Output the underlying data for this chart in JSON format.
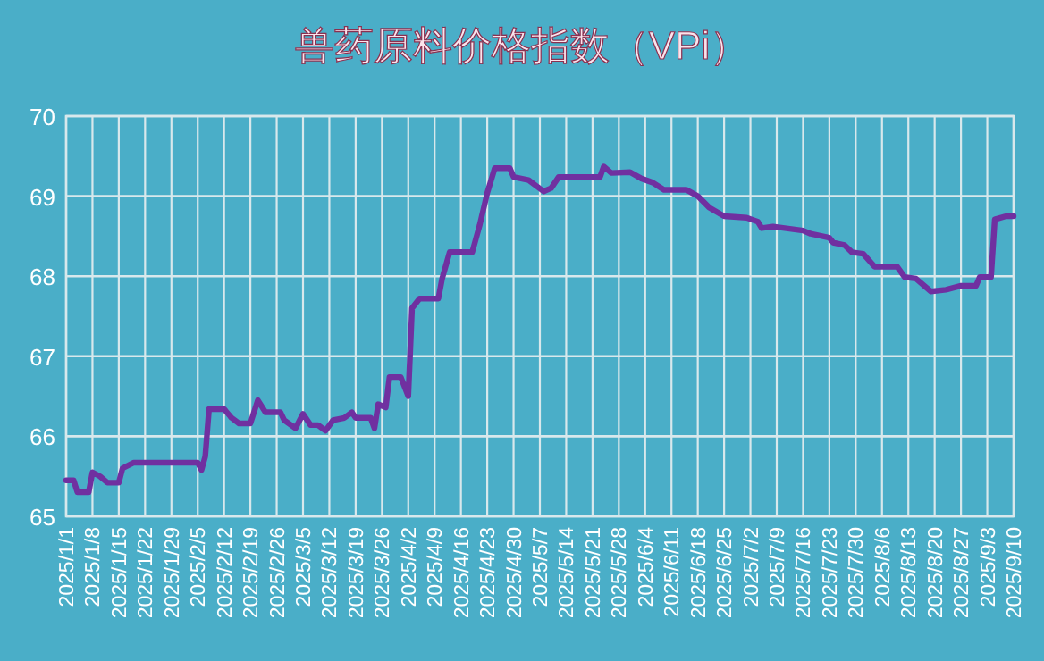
{
  "chart_data": {
    "type": "line",
    "title": "兽药原料价格指数（VPi）",
    "x": [
      "2025-01-01",
      "2025-01-03",
      "2025-01-04",
      "2025-01-07",
      "2025-01-08",
      "2025-01-10",
      "2025-01-12",
      "2025-01-15",
      "2025-01-16",
      "2025-01-19",
      "2025-02-05",
      "2025-02-06",
      "2025-02-07",
      "2025-02-08",
      "2025-02-12",
      "2025-02-14",
      "2025-02-16",
      "2025-02-19",
      "2025-02-21",
      "2025-02-23",
      "2025-02-27",
      "2025-02-28",
      "2025-03-03",
      "2025-03-05",
      "2025-03-07",
      "2025-03-09",
      "2025-03-11",
      "2025-03-13",
      "2025-03-16",
      "2025-03-18",
      "2025-03-19",
      "2025-03-23",
      "2025-03-24",
      "2025-03-25",
      "2025-03-27",
      "2025-03-28",
      "2025-03-31",
      "2025-04-02",
      "2025-04-03",
      "2025-04-05",
      "2025-04-10",
      "2025-04-11",
      "2025-04-13",
      "2025-04-19",
      "2025-04-21",
      "2025-04-23",
      "2025-04-25",
      "2025-04-29",
      "2025-04-30",
      "2025-05-04",
      "2025-05-06",
      "2025-05-08",
      "2025-05-10",
      "2025-05-12",
      "2025-05-23",
      "2025-05-24",
      "2025-05-26",
      "2025-05-31",
      "2025-06-03",
      "2025-06-06",
      "2025-06-09",
      "2025-06-15",
      "2025-06-18",
      "2025-06-21",
      "2025-06-25",
      "2025-07-01",
      "2025-07-04",
      "2025-07-05",
      "2025-07-08",
      "2025-07-16",
      "2025-07-18",
      "2025-07-23",
      "2025-07-24",
      "2025-07-27",
      "2025-07-29",
      "2025-08-01",
      "2025-08-04",
      "2025-08-10",
      "2025-08-12",
      "2025-08-15",
      "2025-08-19",
      "2025-08-23",
      "2025-08-27",
      "2025-08-31",
      "2025-09-01",
      "2025-09-04",
      "2025-09-05",
      "2025-09-08",
      "2025-09-10"
    ],
    "series": [
      {
        "color": "#7030a0",
        "values": [
          65.45,
          65.45,
          65.3,
          65.3,
          65.55,
          65.5,
          65.42,
          65.42,
          65.6,
          65.67,
          65.67,
          65.58,
          65.75,
          66.34,
          66.34,
          66.23,
          66.16,
          66.16,
          66.45,
          66.3,
          66.3,
          66.2,
          66.1,
          66.28,
          66.14,
          66.14,
          66.07,
          66.2,
          66.23,
          66.3,
          66.23,
          66.23,
          66.1,
          66.4,
          66.36,
          66.74,
          66.74,
          66.5,
          67.6,
          67.72,
          67.72,
          67.97,
          68.3,
          68.3,
          68.64,
          69.04,
          69.35,
          69.35,
          69.24,
          69.2,
          69.13,
          69.06,
          69.1,
          69.24,
          69.24,
          69.37,
          69.29,
          69.3,
          69.22,
          69.17,
          69.08,
          69.08,
          69.0,
          68.86,
          68.75,
          68.73,
          68.68,
          68.6,
          68.62,
          68.57,
          68.53,
          68.48,
          68.42,
          68.39,
          68.3,
          68.28,
          68.12,
          68.12,
          67.99,
          67.97,
          67.81,
          67.83,
          67.88,
          67.88,
          67.99,
          67.99,
          68.71,
          68.75,
          68.75
        ]
      }
    ],
    "xlim": [
      "2025-01-01",
      "2025-09-10"
    ],
    "xticks": [
      {
        "value": "2025-01-01",
        "label": "2025/1/1"
      },
      {
        "value": "2025-01-08",
        "label": "2025/1/8"
      },
      {
        "value": "2025-01-15",
        "label": "2025/1/15"
      },
      {
        "value": "2025-01-22",
        "label": "2025/1/22"
      },
      {
        "value": "2025-01-29",
        "label": "2025/1/29"
      },
      {
        "value": "2025-02-05",
        "label": "2025/2/5"
      },
      {
        "value": "2025-02-12",
        "label": "2025/2/12"
      },
      {
        "value": "2025-02-19",
        "label": "2025/2/19"
      },
      {
        "value": "2025-02-26",
        "label": "2025/2/26"
      },
      {
        "value": "2025-03-05",
        "label": "2025/3/5"
      },
      {
        "value": "2025-03-12",
        "label": "2025/3/12"
      },
      {
        "value": "2025-03-19",
        "label": "2025/3/19"
      },
      {
        "value": "2025-03-26",
        "label": "2025/3/26"
      },
      {
        "value": "2025-04-02",
        "label": "2025/4/2"
      },
      {
        "value": "2025-04-09",
        "label": "2025/4/9"
      },
      {
        "value": "2025-04-16",
        "label": "2025/4/16"
      },
      {
        "value": "2025-04-23",
        "label": "2025/4/23"
      },
      {
        "value": "2025-04-30",
        "label": "2025/4/30"
      },
      {
        "value": "2025-05-07",
        "label": "2025/5/7"
      },
      {
        "value": "2025-05-14",
        "label": "2025/5/14"
      },
      {
        "value": "2025-05-21",
        "label": "2025/5/21"
      },
      {
        "value": "2025-05-28",
        "label": "2025/5/28"
      },
      {
        "value": "2025-06-04",
        "label": "2025/6/4"
      },
      {
        "value": "2025-06-11",
        "label": "2025/6/11"
      },
      {
        "value": "2025-06-18",
        "label": "2025/6/18"
      },
      {
        "value": "2025-06-25",
        "label": "2025/6/25"
      },
      {
        "value": "2025-07-02",
        "label": "2025/7/2"
      },
      {
        "value": "2025-07-09",
        "label": "2025/7/9"
      },
      {
        "value": "2025-07-16",
        "label": "2025/7/16"
      },
      {
        "value": "2025-07-23",
        "label": "2025/7/23"
      },
      {
        "value": "2025-07-30",
        "label": "2025/7/30"
      },
      {
        "value": "2025-08-06",
        "label": "2025/8/6"
      },
      {
        "value": "2025-08-13",
        "label": "2025/8/13"
      },
      {
        "value": "2025-08-20",
        "label": "2025/8/20"
      },
      {
        "value": "2025-08-27",
        "label": "2025/8/27"
      },
      {
        "value": "2025-09-03",
        "label": "2025/9/3"
      },
      {
        "value": "2025-09-10",
        "label": "2025/9/10"
      }
    ],
    "ylim": [
      65,
      70
    ],
    "yticks": [
      65,
      66,
      67,
      68,
      69,
      70
    ],
    "grid": true,
    "line_style": "solid",
    "marker": "none"
  }
}
